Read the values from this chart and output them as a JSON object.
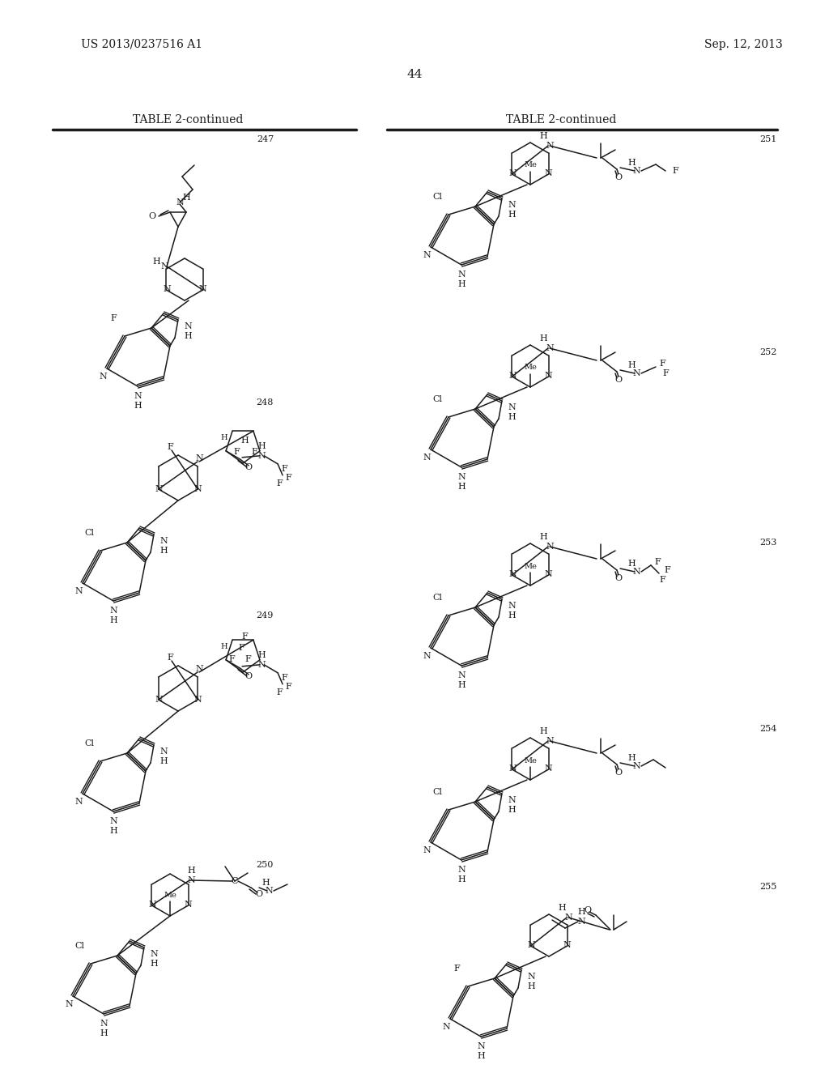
{
  "page_number": "44",
  "patent_number": "US 2013/0237516 A1",
  "patent_date": "Sep. 12, 2013",
  "table_title": "TABLE 2-continued",
  "bg": "#ffffff",
  "fg": "#1a1a1a"
}
